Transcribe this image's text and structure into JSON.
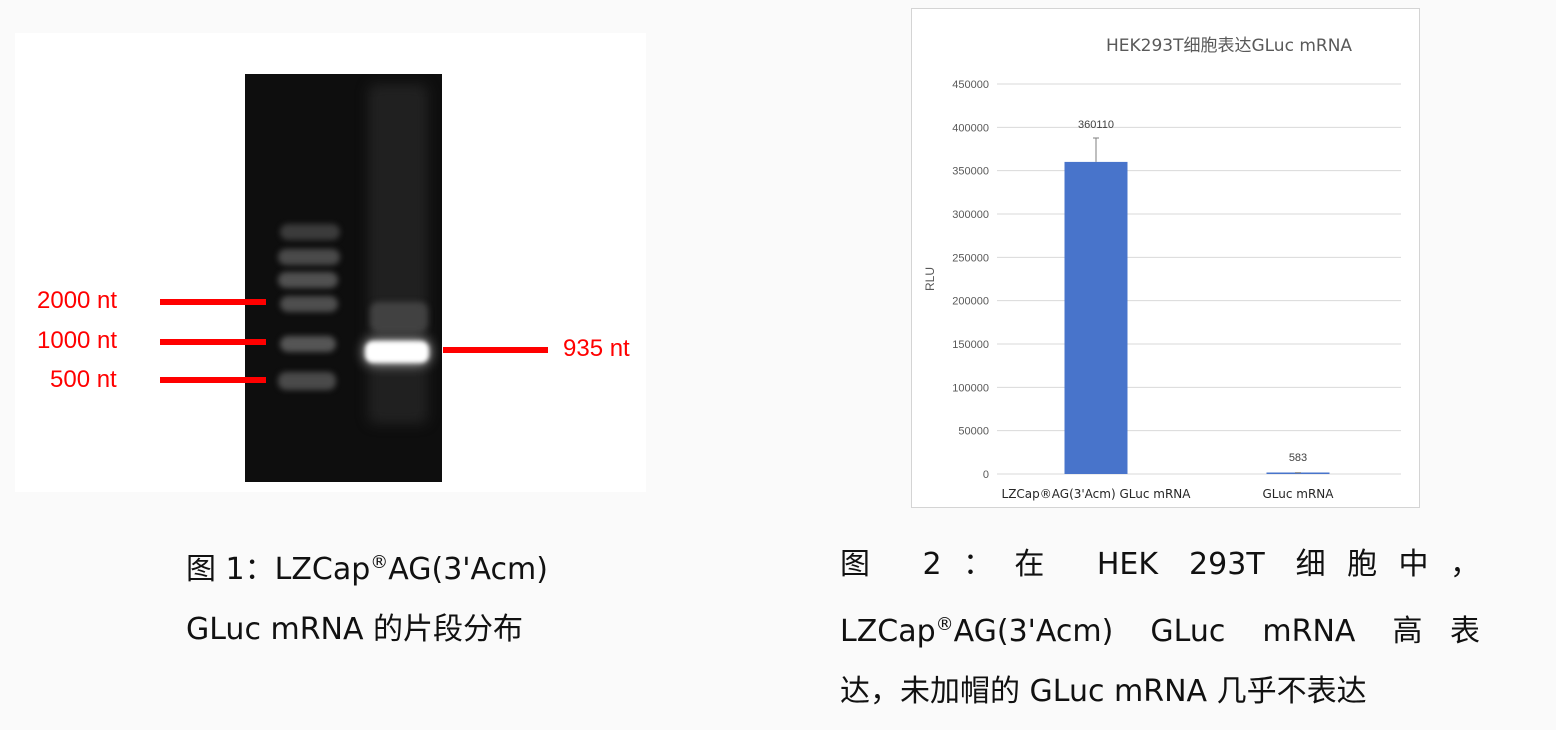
{
  "figure1": {
    "markers": [
      {
        "label": "2000 nt"
      },
      {
        "label": "1000 nt"
      },
      {
        "label": "500 nt"
      }
    ],
    "product_label": "935 nt",
    "caption_line1_pre": "图 1：LZCap",
    "caption_reg": "®",
    "caption_line1_post": "AG(3'Acm)",
    "caption_line2": "GLuc mRNA 的片段分布"
  },
  "figure2": {
    "caption_line1": "图 2：在 HEK 293T 细胞中，",
    "caption_line2_pre": "LZCap",
    "caption_reg": "®",
    "caption_line2_post": "AG(3'Acm) GLuc mRNA 高表",
    "caption_line3": "达，未加帽的 GLuc mRNA 几乎不表达"
  },
  "chart_data": {
    "type": "bar",
    "title": "HEK293T细胞表达GLuc mRNA",
    "xlabel": "",
    "ylabel": "RLU",
    "categories": [
      "LZCap®AG(3'Acm) GLuc mRNA",
      "GLuc mRNA"
    ],
    "values": [
      360110,
      583
    ],
    "data_labels": [
      "360110",
      "583"
    ],
    "error_upper": [
      387700,
      1500
    ],
    "ylim": [
      0,
      450000
    ],
    "yticks": [
      0,
      50000,
      100000,
      150000,
      200000,
      250000,
      300000,
      350000,
      400000,
      450000
    ],
    "grid": true,
    "legend": "none",
    "bar_color": "#4874cb"
  }
}
